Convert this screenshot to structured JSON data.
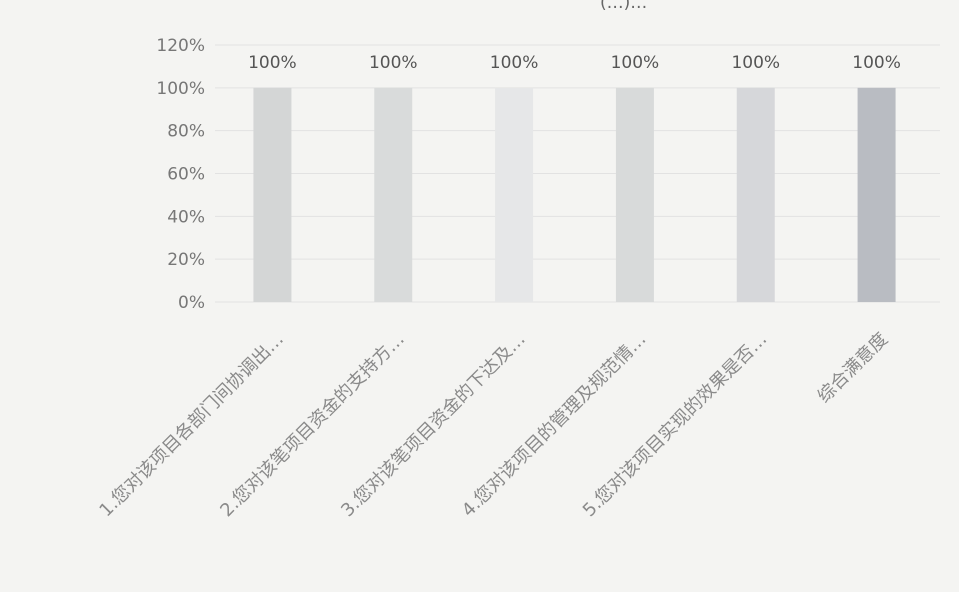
{
  "chart_data": {
    "type": "bar",
    "title": "",
    "xlabel": "",
    "ylabel": "",
    "ylim": [
      0,
      1.2
    ],
    "y_ticks": [
      "0%",
      "20%",
      "40%",
      "60%",
      "80%",
      "100%",
      "120%"
    ],
    "categories": [
      "1.您对该项目各部门间协调出…",
      "2.您对该笔项目资金的支持方…",
      "3.您对该笔项目资金的下达及…",
      "4.您对该项目的管理及规范情…",
      "5.您对该项目实现的效果是否…",
      "综合满意度"
    ],
    "values": [
      1,
      1,
      1,
      1,
      1,
      1
    ],
    "data_labels": [
      "100%",
      "100%",
      "100%",
      "100%",
      "100%",
      "100%"
    ],
    "colors": [
      "#d4d6d6",
      "#d9dbdb",
      "#e6e7e8",
      "#d8dada",
      "#d6d7da",
      "#b9bcc2"
    ],
    "grid": true,
    "legend": "none",
    "top_cropped_text": "(…)…"
  }
}
